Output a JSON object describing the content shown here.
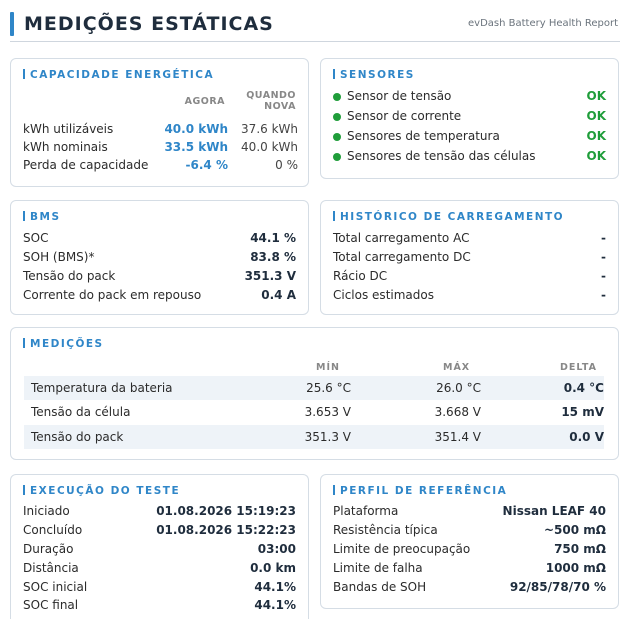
{
  "header": {
    "title": "MEDIÇÕES ESTÁTICAS",
    "subtitle": "evDash Battery Health Report"
  },
  "capacity": {
    "title": "CAPACIDADE ENERGÉTICA",
    "col_now": "AGORA",
    "col_new_line1": "QUANDO",
    "col_new_line2": "NOVA",
    "rows": [
      {
        "label": "kWh utilizáveis",
        "now": "40.0 kWh",
        "new": "37.6 kWh"
      },
      {
        "label": "kWh nominais",
        "now": "33.5 kWh",
        "new": "40.0 kWh"
      },
      {
        "label": "Perda de capacidade",
        "now": "-6.4 %",
        "new": "0 %"
      }
    ]
  },
  "sensors": {
    "title": "SENSORES",
    "items": [
      {
        "label": "Sensor de tensão",
        "status": "OK"
      },
      {
        "label": "Sensor de corrente",
        "status": "OK"
      },
      {
        "label": "Sensores de temperatura",
        "status": "OK"
      },
      {
        "label": "Sensores de tensão das células",
        "status": "OK"
      }
    ],
    "status_color": "#1f9d3a"
  },
  "bms": {
    "title": "BMS",
    "rows": [
      {
        "label": "SOC",
        "value": "44.1 %"
      },
      {
        "label": "SOH (BMS)*",
        "value": "83.8 %"
      },
      {
        "label": "Tensão do pack",
        "value": "351.3 V"
      },
      {
        "label": "Corrente do pack em repouso",
        "value": "0.4 A"
      }
    ]
  },
  "charging": {
    "title": "HISTÓRICO DE CARREGAMENTO",
    "rows": [
      {
        "label": "Total carregamento AC",
        "value": "-"
      },
      {
        "label": "Total carregamento DC",
        "value": "-"
      },
      {
        "label": "Rácio DC",
        "value": "-"
      },
      {
        "label": "Ciclos estimados",
        "value": "-"
      }
    ]
  },
  "measurements": {
    "title": "MEDIÇÕES",
    "col_min": "MÍN",
    "col_max": "MÁX",
    "col_delta": "DELTA",
    "rows": [
      {
        "name": "Temperatura da bateria",
        "min": "25.6 °C",
        "max": "26.0 °C",
        "delta": "0.4 °C"
      },
      {
        "name": "Tensão da célula",
        "min": "3.653 V",
        "max": "3.668 V",
        "delta": "15 mV"
      },
      {
        "name": "Tensão do pack",
        "min": "351.3 V",
        "max": "351.4 V",
        "delta": "0.0 V"
      }
    ]
  },
  "test_run": {
    "title": "EXECUÇÃO DO TESTE",
    "rows": [
      {
        "label": "Iniciado",
        "value": "01.08.2026 15:19:23"
      },
      {
        "label": "Concluído",
        "value": "01.08.2026 15:22:23"
      },
      {
        "label": "Duração",
        "value": "03:00"
      },
      {
        "label": "Distância",
        "value": "0.0 km"
      },
      {
        "label": "SOC inicial",
        "value": "44.1%"
      },
      {
        "label": "SOC final",
        "value": "44.1%"
      }
    ]
  },
  "reference": {
    "title": "PERFIL DE REFERÊNCIA",
    "rows": [
      {
        "label": "Plataforma",
        "value": "Nissan LEAF 40"
      },
      {
        "label": "Resistência típica",
        "value": "~500 mΩ"
      },
      {
        "label": "Limite de preocupação",
        "value": "750 mΩ"
      },
      {
        "label": "Limite de falha",
        "value": "1000 mΩ"
      },
      {
        "label": "Bandas de SOH",
        "value": "92/85/78/70 %"
      }
    ]
  },
  "colors": {
    "accent": "#2f86c8",
    "ok": "#1f9d3a",
    "row_shade": "#eef3f8"
  }
}
